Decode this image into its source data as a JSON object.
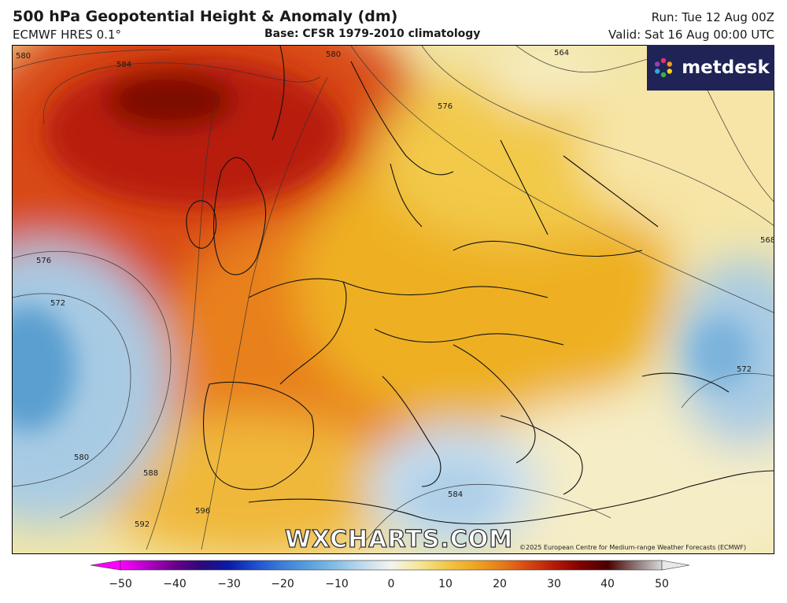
{
  "header": {
    "title": "500 hPa Geopotential Height & Anomaly (dm)",
    "subtitle": "ECMWF HRES 0.1°",
    "base": "Base: CFSR 1979-2010 climatology",
    "run": "Run: Tue 12 Aug 00Z",
    "valid": "Valid: Sat 16 Aug 00:00 UTC"
  },
  "logo": {
    "text": "metdesk",
    "icon": "pinwheel-logo-icon"
  },
  "watermark": "WXCHARTS.COM",
  "copyright": "©2025 European Centre for Medium-range Weather Forecasts (ECMWF)",
  "contour_labels": [
    "580",
    "584",
    "580",
    "576",
    "564",
    "568",
    "576",
    "572",
    "572",
    "580",
    "588",
    "592",
    "596",
    "584"
  ],
  "colorbar": {
    "ticks": [
      "−50",
      "−40",
      "−30",
      "−20",
      "−10",
      "0",
      "10",
      "20",
      "30",
      "40",
      "50"
    ],
    "range": [
      -50,
      50
    ],
    "colors": {
      "-50": "#ff00ff",
      "-45": "#b300c8",
      "-40": "#6a008a",
      "-35": "#2a0a7a",
      "-30": "#0a1aa8",
      "-25": "#1f4fd0",
      "-20": "#3d7fd8",
      "-15": "#5aa2dc",
      "-10": "#88c0e4",
      "-5": "#c2dcee",
      "0": "#f4f4ee",
      "5": "#f6e79a",
      "10": "#f2c94a",
      "15": "#eeaa22",
      "20": "#e8801a",
      "25": "#d84a12",
      "30": "#b81a08",
      "35": "#800000",
      "40": "#4a0000",
      "45": "#8a7070",
      "50": "#d8d8d8"
    }
  },
  "colors": {
    "ridge_core": "#8a0a02",
    "warm": "#d84a12",
    "mild": "#f2c94a",
    "neutral": "#f4f2dc",
    "cool": "#a8cbe4",
    "cold_core": "#5a9fd0"
  }
}
